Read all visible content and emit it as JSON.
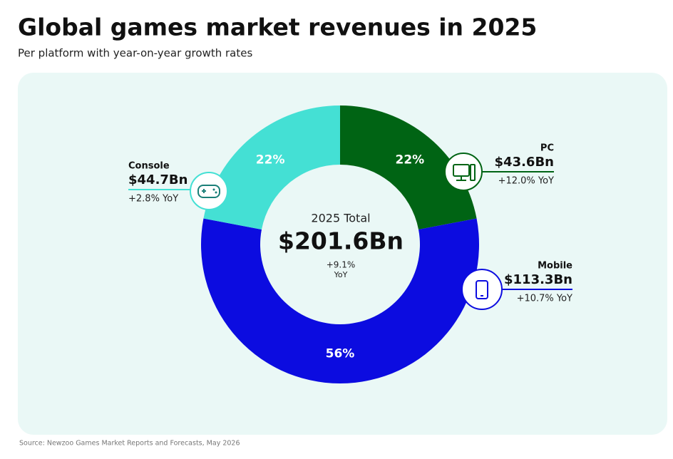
{
  "chart_data": {
    "type": "pie",
    "title": "Global games market revenues in 2025",
    "subtitle": "Per platform with year-on-year growth rates",
    "categories": [
      "PC",
      "Mobile",
      "Console"
    ],
    "values": [
      22,
      56,
      22
    ],
    "value_labels": [
      "22%",
      "56%",
      "22%"
    ],
    "colors": [
      "#006414",
      "#0c0ce0",
      "#44e0d4"
    ],
    "revenues": [
      "$43.6Bn",
      "$113.3Bn",
      "$44.7Bn"
    ],
    "growth": [
      "+12.0% YoY",
      "+10.7% YoY",
      "+2.8% YoY"
    ],
    "center_label": "2025 Total",
    "total": "$201.6Bn",
    "total_growth": "+9.1%",
    "total_growth_unit": "YoY",
    "source": "Source: Newzoo Games Market Reports and Forecasts, May 2026"
  }
}
